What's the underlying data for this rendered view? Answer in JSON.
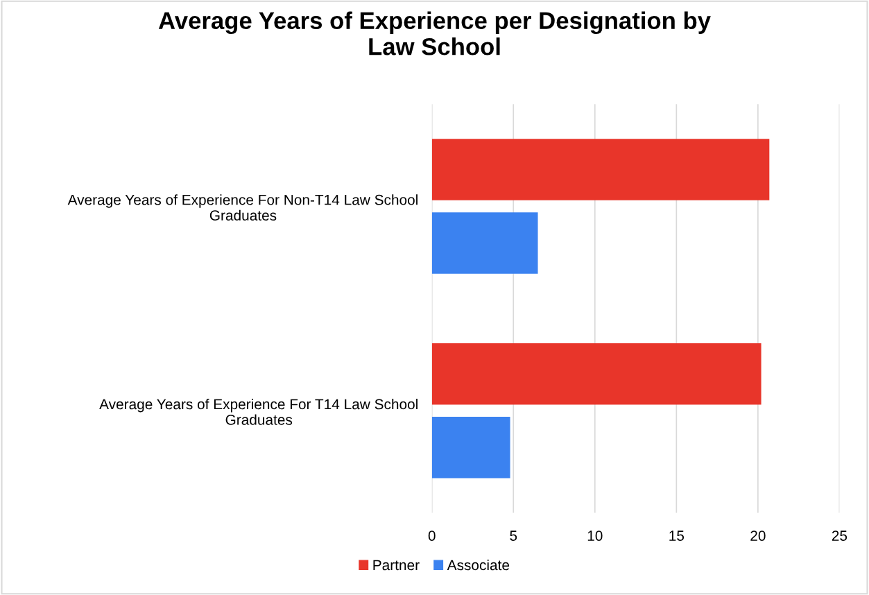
{
  "chart_data": {
    "type": "bar",
    "orientation": "horizontal",
    "title": "Average Years of Experience per Designation by Law School",
    "categories": [
      "Average Years of Experience For Non-T14 Law School Graduates",
      "Average Years of Experience For T14 Law School Graduates"
    ],
    "series": [
      {
        "name": "Partner",
        "color": "#e8352a",
        "values": [
          20.7,
          20.2
        ]
      },
      {
        "name": "Associate",
        "color": "#3b82f0",
        "values": [
          6.5,
          4.8
        ]
      }
    ],
    "xlim": [
      0,
      25
    ],
    "xticks": [
      0,
      5,
      10,
      15,
      20,
      25
    ],
    "grid": "x",
    "legend": "bottom"
  }
}
